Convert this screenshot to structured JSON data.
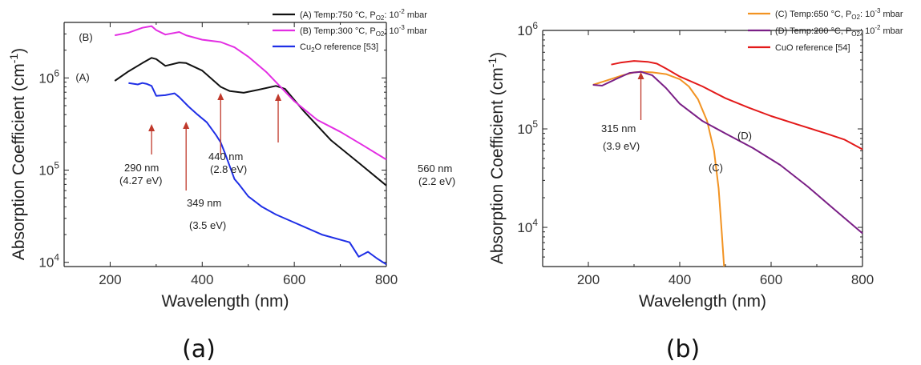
{
  "chart_data": [
    {
      "type": "line",
      "panel_label": "(a)",
      "xlabel": "Wavelength (nm)",
      "ylabel": "Absorption Coefficient (cm",
      "ylabel_sup": "-1",
      "ylabel_end": ")",
      "xlim": [
        100,
        800
      ],
      "ylim": [
        9000,
        4000000
      ],
      "yscale": "log",
      "x_ticks": [
        200,
        400,
        600,
        800
      ],
      "y_ticks": [
        {
          "base": "10",
          "exp": "4",
          "v": 10000
        },
        {
          "base": "10",
          "exp": "5",
          "v": 100000
        },
        {
          "base": "10",
          "exp": "6",
          "v": 1000000
        }
      ],
      "series": [
        {
          "name": "(A) Temp:750 °C, P",
          "name_sub": "O2",
          "name_mid": ": 10",
          "name_sup": "-2",
          "name_end": " mbar",
          "label": "(A)",
          "color": "#111111",
          "x": [
            210,
            240,
            270,
            290,
            300,
            320,
            350,
            365,
            400,
            440,
            460,
            490,
            520,
            560,
            580,
            620,
            680,
            740,
            800
          ],
          "y": [
            930000,
            1180000,
            1450000,
            1650000,
            1600000,
            1350000,
            1470000,
            1450000,
            1200000,
            800000,
            720000,
            690000,
            740000,
            820000,
            760000,
            440000,
            210000,
            120000,
            68000
          ]
        },
        {
          "name": "(B) Temp:300 °C, P",
          "name_sub": "O2",
          "name_mid": ": 10",
          "name_sup": "-3",
          "name_end": " mbar",
          "label": "(B)",
          "color": "#e32ee3",
          "x": [
            210,
            240,
            270,
            290,
            300,
            320,
            350,
            365,
            400,
            440,
            470,
            500,
            540,
            600,
            650,
            700,
            750,
            800
          ],
          "y": [
            2900000,
            3100000,
            3500000,
            3650000,
            3300000,
            2950000,
            3150000,
            2900000,
            2600000,
            2450000,
            2150000,
            1700000,
            1150000,
            560000,
            350000,
            260000,
            185000,
            130000
          ]
        },
        {
          "name": "Cu",
          "name_sub": "2",
          "name_mid": "O reference [53]",
          "name_sup": "",
          "name_end": "",
          "label": "",
          "color": "#1f2fe6",
          "x": [
            240,
            260,
            270,
            280,
            290,
            300,
            320,
            340,
            350,
            370,
            390,
            410,
            430,
            440,
            450,
            460,
            470,
            480,
            500,
            530,
            560,
            600,
            660,
            720,
            740,
            760,
            780,
            800
          ],
          "y": [
            880000,
            850000,
            880000,
            860000,
            820000,
            640000,
            650000,
            680000,
            620000,
            490000,
            400000,
            330000,
            240000,
            200000,
            150000,
            110000,
            80000,
            70000,
            52000,
            40000,
            33000,
            27000,
            20000,
            16500,
            11500,
            13000,
            11000,
            9500
          ]
        }
      ],
      "annotations": [
        {
          "x": 290,
          "label1": "290 nm",
          "label2": "(4.27 eV)"
        },
        {
          "x": 365,
          "label1": "349 nm",
          "label2": "(3.5 eV)"
        },
        {
          "x": 440,
          "label1": "440 nm",
          "label2": "(2.8 eV)"
        },
        {
          "x": 565,
          "label1": "560 nm",
          "label2": "(2.2 eV)"
        }
      ],
      "legend_position": "top-right, outside"
    },
    {
      "type": "line",
      "panel_label": "(b)",
      "xlabel": "Wavelength (nm)",
      "ylabel": "Absorption Coefficient (cm",
      "ylabel_sup": "-1",
      "ylabel_end": ")",
      "xlim": [
        100,
        800
      ],
      "ylim": [
        4000,
        1000000
      ],
      "yscale": "log",
      "x_ticks": [
        200,
        400,
        600,
        800
      ],
      "y_ticks": [
        {
          "base": "10",
          "exp": "4",
          "v": 10000
        },
        {
          "base": "10",
          "exp": "5",
          "v": 100000
        },
        {
          "base": "10",
          "exp": "6",
          "v": 1000000
        }
      ],
      "series": [
        {
          "name": "(C) Temp:650 °C, P",
          "name_sub": "O2",
          "name_mid": ": 10",
          "name_sup": "-3",
          "name_end": " mbar",
          "label": "(C)",
          "color": "#f29322",
          "x": [
            210,
            240,
            270,
            300,
            315,
            340,
            370,
            400,
            420,
            440,
            460,
            475,
            485,
            492,
            497
          ],
          "y": [
            280000,
            310000,
            345000,
            375000,
            380000,
            375000,
            360000,
            320000,
            270000,
            200000,
            120000,
            60000,
            25000,
            9000,
            4000
          ]
        },
        {
          "name": "(D) Temp:200 °C, P",
          "name_sub": "O2",
          "name_mid": ": 10",
          "name_sup": "-2",
          "name_end": " mbar",
          "label": "(D)",
          "color": "#7a1f86",
          "x": [
            210,
            230,
            260,
            290,
            315,
            340,
            370,
            400,
            450,
            500,
            560,
            620,
            680,
            740,
            800
          ],
          "y": [
            280000,
            275000,
            320000,
            370000,
            380000,
            350000,
            260000,
            180000,
            120000,
            90000,
            64000,
            43000,
            26000,
            15000,
            8700
          ]
        },
        {
          "name": "CuO reference [54]",
          "name_sub": "",
          "name_mid": "",
          "name_sup": "",
          "name_end": "",
          "label": "",
          "color": "#e31a1a",
          "x": [
            250,
            270,
            300,
            330,
            350,
            370,
            400,
            450,
            500,
            550,
            600,
            660,
            720,
            760,
            800
          ],
          "y": [
            450000,
            470000,
            490000,
            480000,
            460000,
            410000,
            340000,
            270000,
            205000,
            165000,
            135000,
            110000,
            90000,
            78000,
            62000
          ]
        }
      ],
      "annotations": [
        {
          "x": 315,
          "label1": "315 nm",
          "label2": "(3.9 eV)"
        }
      ],
      "legend_position": "top-right, outside"
    }
  ]
}
